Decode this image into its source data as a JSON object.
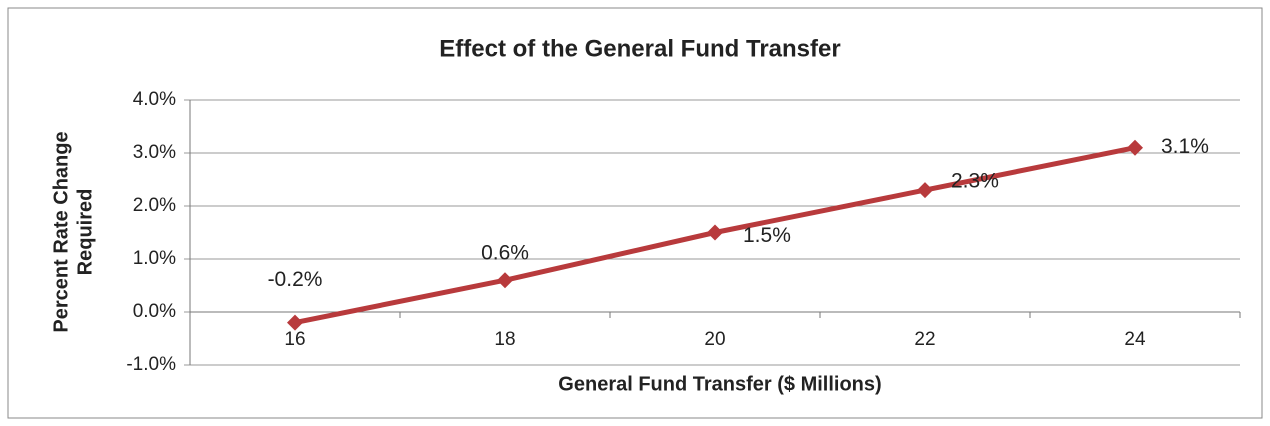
{
  "chart_data": {
    "type": "line",
    "title": "Effect of the General Fund Transfer",
    "x_label": "General Fund Transfer ($ Millions)",
    "y_label": [
      "Percent Rate Change",
      "Required"
    ],
    "categories": [
      "16",
      "18",
      "20",
      "22",
      "24"
    ],
    "series": [
      {
        "name": "Percent Rate Change Required",
        "color": "#b83a3c",
        "values": [
          -0.2,
          0.6,
          1.5,
          2.3,
          3.1
        ],
        "value_labels": [
          "-0.2%",
          "0.6%",
          "1.5%",
          "2.3%",
          "3.1%"
        ]
      }
    ],
    "ylim": [
      -1,
      4
    ],
    "yticks": [
      {
        "value": -1,
        "label": "-1.0%"
      },
      {
        "value": 0,
        "label": "0.0%"
      },
      {
        "value": 1,
        "label": "1.0%"
      },
      {
        "value": 2,
        "label": "2.0%"
      },
      {
        "value": 3,
        "label": "3.0%"
      },
      {
        "value": 4,
        "label": "4.0%"
      }
    ],
    "grid": true
  }
}
